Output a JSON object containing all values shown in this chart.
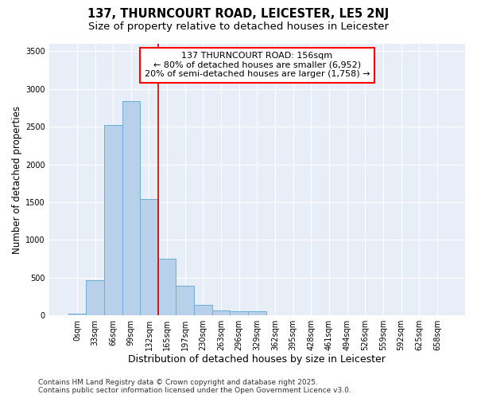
{
  "title": "137, THURNCOURT ROAD, LEICESTER, LE5 2NJ",
  "subtitle": "Size of property relative to detached houses in Leicester",
  "xlabel": "Distribution of detached houses by size in Leicester",
  "ylabel": "Number of detached properties",
  "categories": [
    "0sqm",
    "33sqm",
    "66sqm",
    "99sqm",
    "132sqm",
    "165sqm",
    "197sqm",
    "230sqm",
    "263sqm",
    "296sqm",
    "329sqm",
    "362sqm",
    "395sqm",
    "428sqm",
    "461sqm",
    "494sqm",
    "526sqm",
    "559sqm",
    "592sqm",
    "625sqm",
    "658sqm"
  ],
  "values": [
    20,
    470,
    2520,
    2840,
    1540,
    750,
    390,
    140,
    65,
    50,
    55,
    0,
    0,
    0,
    0,
    0,
    0,
    0,
    0,
    0,
    0
  ],
  "bar_color": "#b8d0ea",
  "bar_edge_color": "#6aaed6",
  "plot_bg_color": "#e8eef8",
  "fig_bg_color": "#ffffff",
  "grid_color": "#ffffff",
  "vline_color": "#cc0000",
  "vline_x": 4.5,
  "annotation_title": "137 THURNCOURT ROAD: 156sqm",
  "annotation_line2": "← 80% of detached houses are smaller (6,952)",
  "annotation_line3": "20% of semi-detached houses are larger (1,758) →",
  "footnote1": "Contains HM Land Registry data © Crown copyright and database right 2025.",
  "footnote2": "Contains public sector information licensed under the Open Government Licence v3.0.",
  "ylim": [
    0,
    3600
  ],
  "yticks": [
    0,
    500,
    1000,
    1500,
    2000,
    2500,
    3000,
    3500
  ],
  "title_fontsize": 10.5,
  "subtitle_fontsize": 9.5,
  "xlabel_fontsize": 9,
  "ylabel_fontsize": 8.5,
  "tick_fontsize": 7,
  "annot_fontsize": 8,
  "footnote_fontsize": 6.5
}
